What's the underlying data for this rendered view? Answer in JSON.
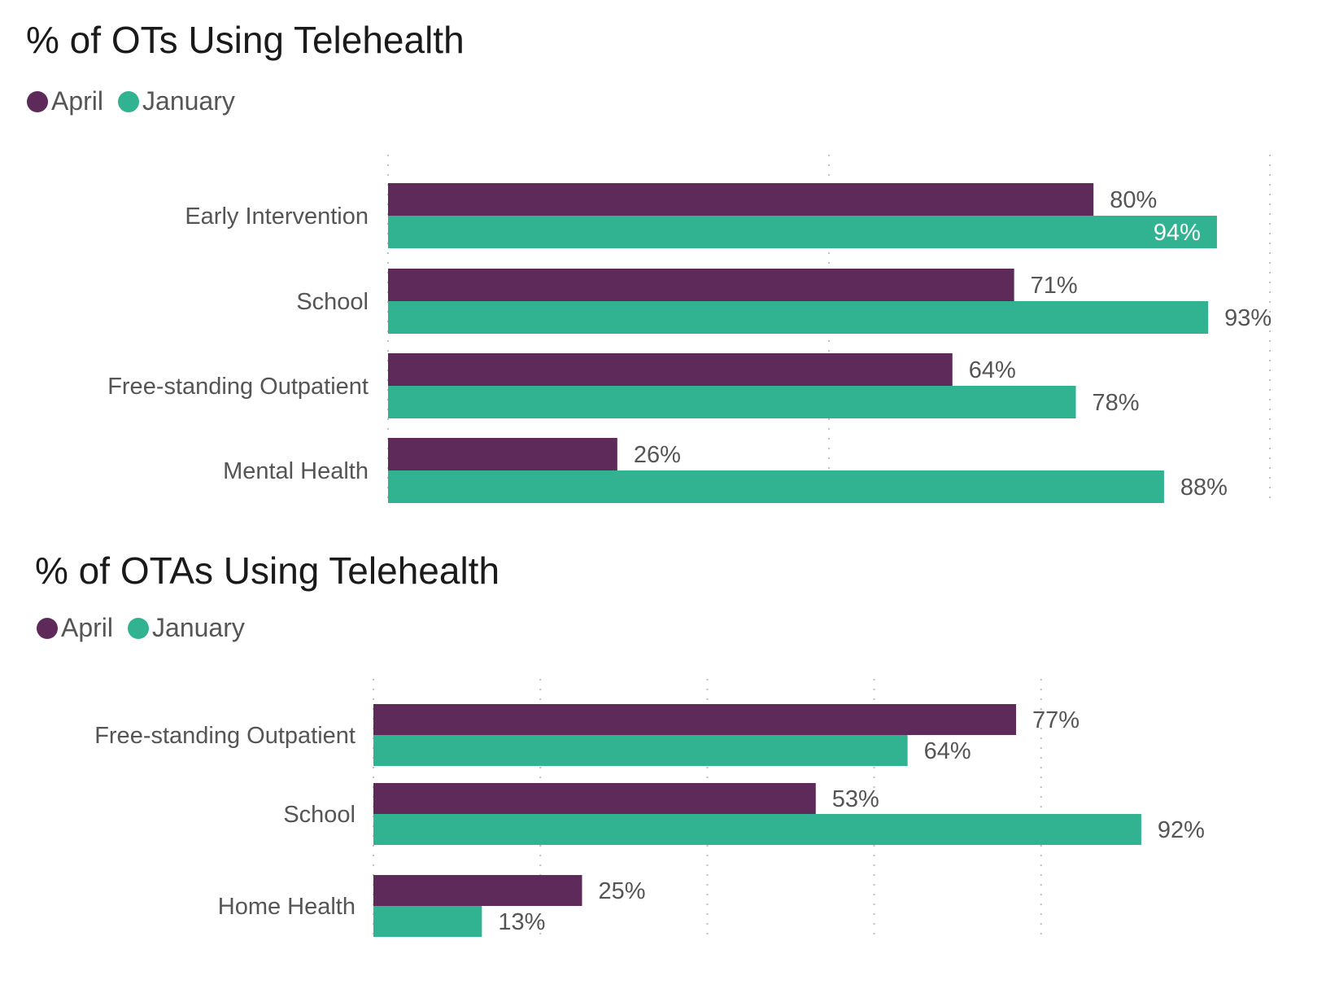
{
  "colors": {
    "april": "#5e2a5a",
    "january": "#31b391",
    "grid": "#c0c0c0"
  },
  "chart_data": [
    {
      "type": "bar",
      "orientation": "horizontal",
      "title": "% of OTs Using Telehealth",
      "categories": [
        "Early Intervention",
        "School",
        "Free-standing Outpatient",
        "Mental Health"
      ],
      "series": [
        {
          "name": "April",
          "values": [
            80,
            71,
            64,
            26
          ],
          "labels": [
            "80%",
            "71%",
            "64%",
            "26%"
          ]
        },
        {
          "name": "January",
          "values": [
            94,
            93,
            78,
            88
          ],
          "labels": [
            "94%",
            "93%",
            "78%",
            "88%"
          ]
        }
      ],
      "xlabel": "",
      "ylabel": "",
      "xlim": [
        0,
        100
      ],
      "grid_step": 50,
      "grid": true,
      "legend": "top-left",
      "inside_labels": [
        [
          false,
          false,
          false,
          false
        ],
        [
          true,
          false,
          false,
          false
        ]
      ]
    },
    {
      "type": "bar",
      "orientation": "horizontal",
      "title": "% of OTAs Using Telehealth",
      "categories": [
        "Free-standing Outpatient",
        "School",
        "Home Health"
      ],
      "series": [
        {
          "name": "April",
          "values": [
            77,
            53,
            25
          ],
          "labels": [
            "77%",
            "53%",
            "25%"
          ]
        },
        {
          "name": "January",
          "values": [
            64,
            92,
            13
          ],
          "labels": [
            "64%",
            "92%",
            "13%"
          ]
        }
      ],
      "xlabel": "",
      "ylabel": "",
      "xlim": [
        0,
        80
      ],
      "grid_step": 20,
      "grid": true,
      "legend": "top-left",
      "inside_labels": [
        [
          false,
          false,
          false
        ],
        [
          false,
          false,
          false
        ]
      ]
    }
  ]
}
